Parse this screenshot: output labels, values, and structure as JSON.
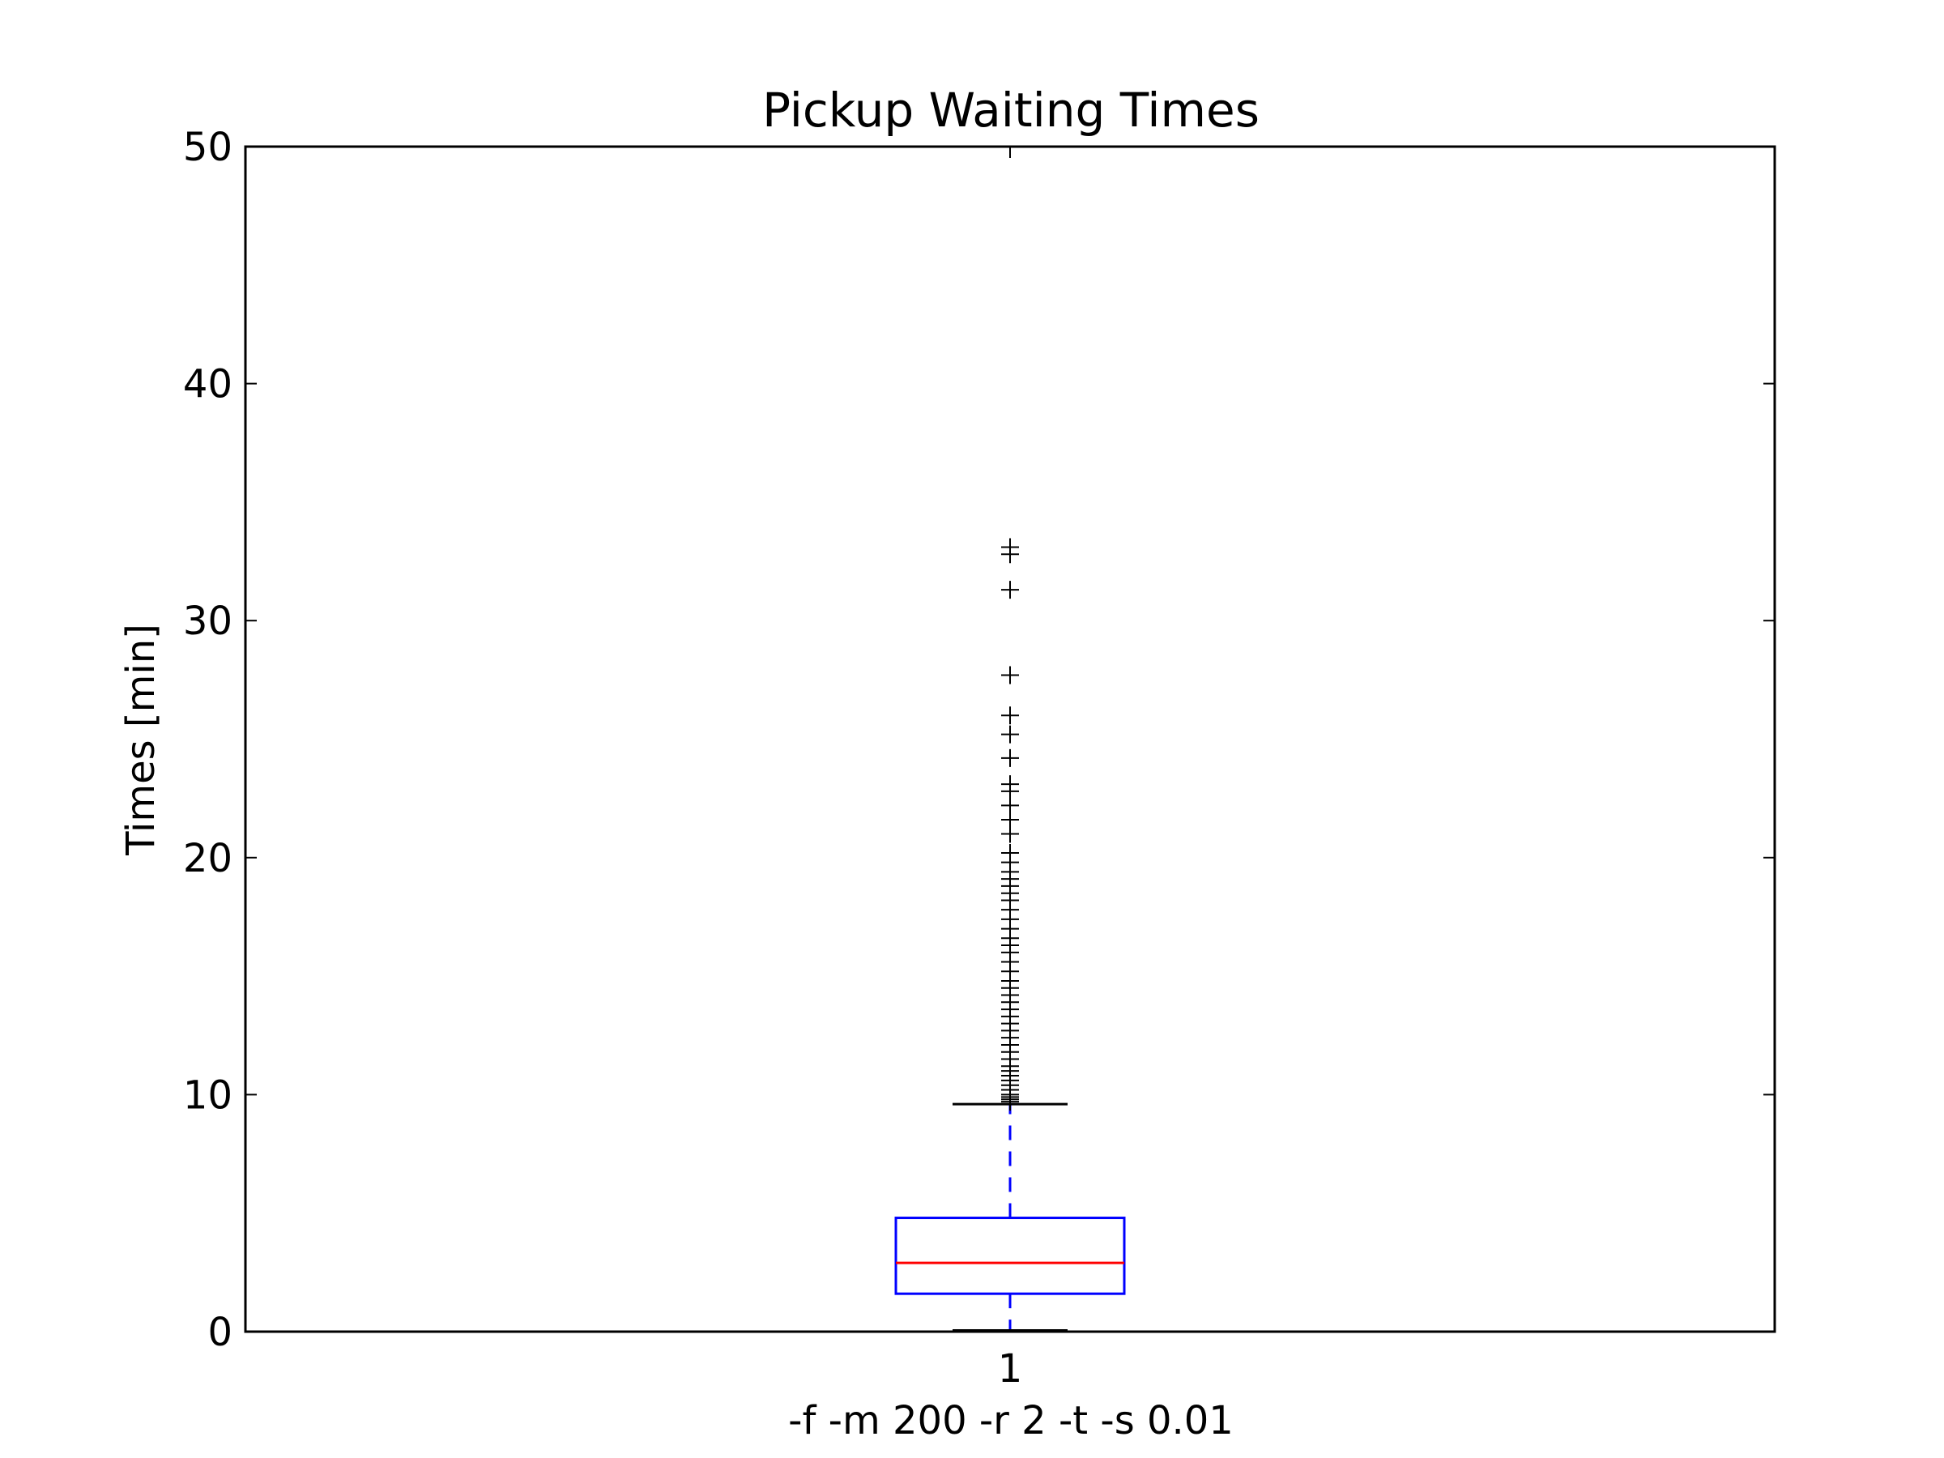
{
  "chart_data": {
    "type": "box",
    "title": "Pickup Waiting Times",
    "xlabel": "-f -m 200 -r 2 -t -s 0.01",
    "ylabel": "Times [min]",
    "ylim": [
      0,
      50
    ],
    "yticks": [
      "0",
      "10",
      "20",
      "30",
      "40",
      "50"
    ],
    "categories": [
      "1"
    ],
    "grid": false,
    "series": [
      {
        "whisker_low": 0.05,
        "q1": 1.6,
        "median": 2.9,
        "q3": 4.8,
        "whisker_high": 9.6,
        "outliers": [
          9.7,
          9.8,
          9.9,
          10.0,
          10.2,
          10.4,
          10.6,
          10.8,
          11.0,
          11.2,
          11.5,
          11.8,
          12.1,
          12.4,
          12.7,
          13.0,
          13.3,
          13.6,
          13.9,
          14.2,
          14.5,
          14.8,
          15.2,
          15.6,
          16.0,
          16.3,
          16.6,
          17.0,
          17.4,
          17.8,
          18.2,
          18.5,
          18.8,
          19.1,
          19.4,
          19.8,
          20.2,
          21.0,
          21.6,
          22.2,
          22.8,
          23.1,
          24.2,
          25.2,
          26.0,
          27.7,
          31.3,
          32.8,
          33.1
        ]
      }
    ],
    "colors": {
      "box": "#0000ff",
      "whisker": "#0000ff",
      "median": "#ff0000",
      "cap": "#000000",
      "outlier": "#000000"
    }
  }
}
